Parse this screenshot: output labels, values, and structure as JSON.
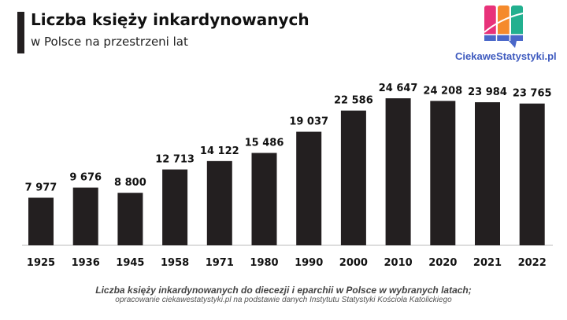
{
  "header": {
    "title": "Liczba księży inkardynowanych",
    "subtitle": "w Polsce na przestrzeni lat"
  },
  "logo": {
    "text": "CiekaweStatystyki.pl",
    "colors": [
      "#e8327a",
      "#f58a2c",
      "#22b08f",
      "#4a67c9"
    ]
  },
  "chart_data": {
    "type": "bar",
    "title": "Liczba księży inkardynowanych w Polsce na przestrzeni lat",
    "categories": [
      "1925",
      "1936",
      "1945",
      "1958",
      "1971",
      "1980",
      "1990",
      "2000",
      "2010",
      "2020",
      "2021",
      "2022"
    ],
    "values": [
      7977,
      9676,
      8800,
      12713,
      14122,
      15486,
      19037,
      22586,
      24647,
      24208,
      23984,
      23765
    ],
    "labels": [
      "7 977",
      "9 676",
      "8 800",
      "12 713",
      "14 122",
      "15 486",
      "19 037",
      "22 586",
      "24 647",
      "24 208",
      "23 984",
      "23 765"
    ],
    "xlabel": "",
    "ylabel": "",
    "ylim": [
      0,
      24647
    ],
    "grid": false,
    "bar_color": "#231f20"
  },
  "footer": {
    "caption": "Liczba księży inkardynowanych do diecezji i eparchii w Polsce w wybranych latach;",
    "source": "opracowanie ciekawestatystyki.pl na podstawie danych Instytutu Statystyki Kościoła Katolickiego"
  }
}
